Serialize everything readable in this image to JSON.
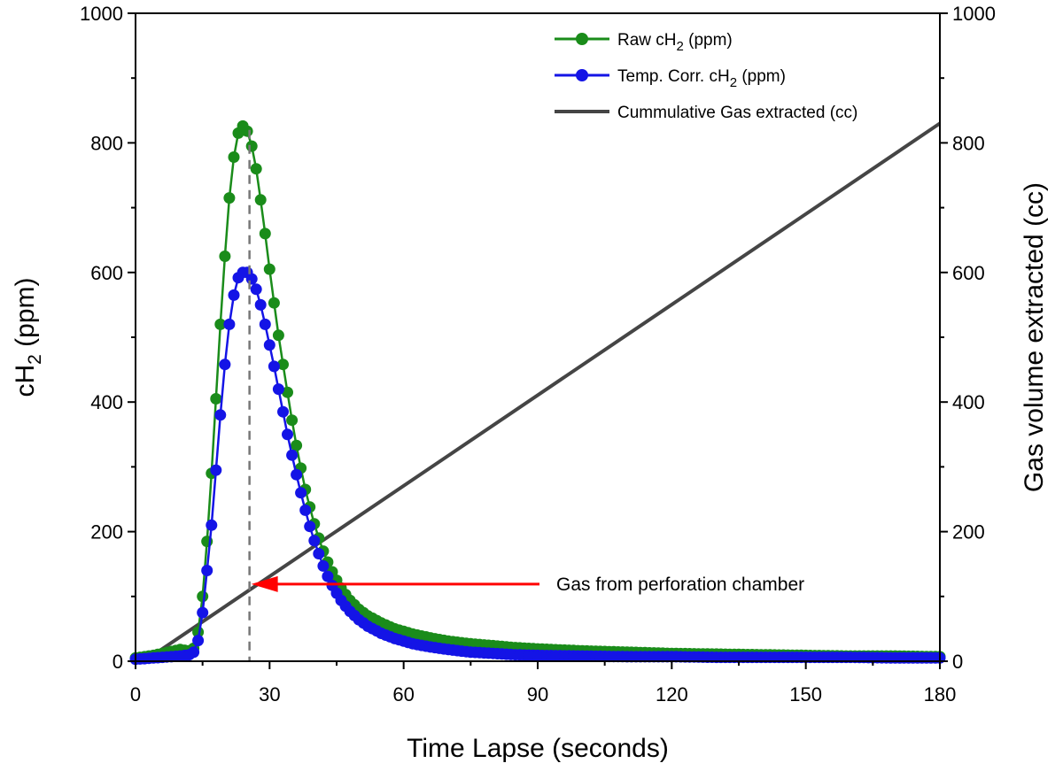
{
  "chart_data": {
    "type": "line",
    "xlabel": "Time Lapse (seconds)",
    "ylabel_left": {
      "main": "cH",
      "sub": "2",
      "rest": " (ppm)"
    },
    "ylabel_right": "Gas volume extracted (cc)",
    "xlim": [
      0,
      180
    ],
    "ylim_left": [
      0,
      1000
    ],
    "ylim_right": [
      0,
      1000
    ],
    "x_ticks": [
      "0",
      "30",
      "60",
      "90",
      "120",
      "150",
      "180"
    ],
    "y_ticks_left": [
      "0",
      "200",
      "400",
      "600",
      "800",
      "1000"
    ],
    "y_ticks_right": [
      "0",
      "200",
      "400",
      "600",
      "800",
      "1000"
    ],
    "grid": false,
    "legend_position": "top-right",
    "series": [
      {
        "name": {
          "main": "Raw cH",
          "sub": "2",
          "rest": " (ppm)"
        },
        "color": "#1a8c1a",
        "marker": "circle",
        "axis": "left",
        "points": [
          [
            0,
            5
          ],
          [
            2,
            7
          ],
          [
            4,
            9
          ],
          [
            6,
            12
          ],
          [
            8,
            15
          ],
          [
            10,
            18
          ],
          [
            12,
            16
          ],
          [
            13,
            20
          ],
          [
            14,
            45
          ],
          [
            15,
            100
          ],
          [
            16,
            185
          ],
          [
            17,
            290
          ],
          [
            18,
            405
          ],
          [
            19,
            520
          ],
          [
            20,
            625
          ],
          [
            21,
            715
          ],
          [
            22,
            778
          ],
          [
            23,
            815
          ],
          [
            24,
            826
          ],
          [
            25,
            818
          ],
          [
            26,
            795
          ],
          [
            27,
            760
          ],
          [
            28,
            712
          ],
          [
            29,
            660
          ],
          [
            30,
            605
          ],
          [
            31,
            553
          ],
          [
            32,
            503
          ],
          [
            33,
            458
          ],
          [
            34,
            415
          ],
          [
            35,
            372
          ],
          [
            36,
            333
          ],
          [
            37,
            298
          ],
          [
            38,
            265
          ],
          [
            39,
            238
          ],
          [
            40,
            212
          ],
          [
            41,
            190
          ],
          [
            42,
            170
          ],
          [
            43,
            153
          ],
          [
            44,
            138
          ],
          [
            45,
            125
          ],
          [
            46,
            113
          ],
          [
            47,
            103
          ],
          [
            48,
            94
          ],
          [
            50,
            80
          ],
          [
            52,
            70
          ],
          [
            55,
            59
          ],
          [
            58,
            50
          ],
          [
            62,
            42
          ],
          [
            66,
            36
          ],
          [
            70,
            31
          ],
          [
            75,
            27
          ],
          [
            80,
            24
          ],
          [
            85,
            21
          ],
          [
            90,
            19
          ],
          [
            100,
            16
          ],
          [
            110,
            14
          ],
          [
            120,
            12
          ],
          [
            130,
            11
          ],
          [
            140,
            10
          ],
          [
            150,
            9
          ],
          [
            160,
            8
          ],
          [
            170,
            8
          ],
          [
            180,
            7
          ]
        ]
      },
      {
        "name": {
          "main": "Temp. Corr. cH",
          "sub": "2",
          "rest": " (ppm)"
        },
        "color": "#1414e6",
        "marker": "circle",
        "axis": "left",
        "points": [
          [
            0,
            3
          ],
          [
            2,
            4
          ],
          [
            4,
            5
          ],
          [
            6,
            6
          ],
          [
            8,
            7
          ],
          [
            10,
            8
          ],
          [
            11,
            9
          ],
          [
            12,
            10
          ],
          [
            13,
            14
          ],
          [
            14,
            32
          ],
          [
            15,
            75
          ],
          [
            16,
            140
          ],
          [
            17,
            210
          ],
          [
            18,
            295
          ],
          [
            19,
            380
          ],
          [
            20,
            458
          ],
          [
            21,
            520
          ],
          [
            22,
            565
          ],
          [
            23,
            592
          ],
          [
            24,
            600
          ],
          [
            25,
            600
          ],
          [
            26,
            590
          ],
          [
            27,
            574
          ],
          [
            28,
            550
          ],
          [
            29,
            520
          ],
          [
            30,
            488
          ],
          [
            31,
            455
          ],
          [
            32,
            420
          ],
          [
            33,
            385
          ],
          [
            34,
            350
          ],
          [
            35,
            318
          ],
          [
            36,
            288
          ],
          [
            37,
            260
          ],
          [
            38,
            233
          ],
          [
            39,
            208
          ],
          [
            40,
            186
          ],
          [
            41,
            166
          ],
          [
            42,
            147
          ],
          [
            43,
            131
          ],
          [
            44,
            117
          ],
          [
            45,
            105
          ],
          [
            46,
            94
          ],
          [
            47,
            85
          ],
          [
            48,
            77
          ],
          [
            50,
            64
          ],
          [
            52,
            54
          ],
          [
            55,
            43
          ],
          [
            58,
            35
          ],
          [
            62,
            27
          ],
          [
            66,
            22
          ],
          [
            70,
            18
          ],
          [
            75,
            14
          ],
          [
            80,
            12
          ],
          [
            85,
            10
          ],
          [
            90,
            9
          ],
          [
            100,
            8
          ],
          [
            110,
            7
          ],
          [
            120,
            7
          ],
          [
            130,
            6
          ],
          [
            140,
            6
          ],
          [
            150,
            6
          ],
          [
            160,
            6
          ],
          [
            170,
            5
          ],
          [
            180,
            5
          ]
        ]
      },
      {
        "name": {
          "main": "Cummulative Gas extracted (cc)",
          "sub": "",
          "rest": ""
        },
        "color": "#454545",
        "marker": "none",
        "axis": "right",
        "points": [
          [
            0,
            0
          ],
          [
            3,
            5
          ],
          [
            180,
            830
          ]
        ]
      }
    ],
    "annotations": [
      {
        "text": "Gas from perforation chamber",
        "arrow_to": [
          25.5,
          119
        ],
        "color": "#ff0000"
      }
    ],
    "reference_line": {
      "x": 25.5,
      "style": "dashed",
      "color": "#777777"
    }
  }
}
